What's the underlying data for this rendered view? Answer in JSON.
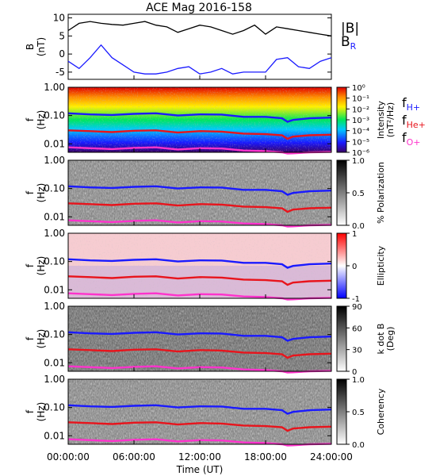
{
  "chart_data": [
    {
      "type": "line",
      "title": "ACE Mag 2016-158",
      "ylabel_lines": [
        "B",
        "(nT)"
      ],
      "ylim": [
        -7,
        11
      ],
      "yticks": [
        {
          "v": 10,
          "label": "10"
        },
        {
          "v": 5,
          "label": "5"
        },
        {
          "v": 0,
          "label": "0"
        },
        {
          "v": -5,
          "label": "-5"
        }
      ],
      "series": [
        {
          "name": "|B|",
          "color": "#000000",
          "x": [
            0,
            1,
            2,
            3,
            4,
            5,
            6,
            7,
            8,
            9,
            10,
            11,
            12,
            13,
            14,
            15,
            16,
            17,
            18,
            19,
            20,
            21,
            22,
            23,
            24
          ],
          "values": [
            6.5,
            8.5,
            9.0,
            8.5,
            8.2,
            8.0,
            8.5,
            9.0,
            8.0,
            7.5,
            6.0,
            7.0,
            8.0,
            7.5,
            6.5,
            5.5,
            6.5,
            8.0,
            5.5,
            7.5,
            7.0,
            6.5,
            6.0,
            5.5,
            5.0
          ]
        },
        {
          "name": "B_R",
          "color": "#1a1aff",
          "x": [
            0,
            1,
            2,
            3,
            4,
            5,
            6,
            7,
            8,
            9,
            10,
            11,
            12,
            13,
            14,
            15,
            16,
            17,
            18,
            19,
            20,
            21,
            22,
            23,
            24
          ],
          "values": [
            -2.0,
            -4.0,
            -1.0,
            2.5,
            -1.0,
            -3.0,
            -5.0,
            -5.5,
            -5.5,
            -5.0,
            -4.0,
            -3.5,
            -5.5,
            -5.0,
            -4.0,
            -5.5,
            -5.0,
            -5.0,
            -5.0,
            -1.5,
            -1.0,
            -3.5,
            -4.0,
            -2.0,
            -1.0
          ]
        }
      ]
    },
    {
      "type": "heatmap",
      "ylabel_lines": [
        "f",
        "(Hz)"
      ],
      "ylim": [
        0.005,
        1.0
      ],
      "yscale": "log",
      "yticks": [
        {
          "v": 1.0,
          "label": "1.00"
        },
        {
          "v": 0.1,
          "label": "0.10"
        },
        {
          "v": 0.01,
          "label": "0.01"
        }
      ],
      "colormap": "rainbow",
      "colorbar_label_lines": [
        "Intensity",
        "(nT²/Hz)"
      ],
      "colorbar_ticks": [
        {
          "label": "10⁰"
        },
        {
          "label": "10⁻¹"
        },
        {
          "label": "10⁻²"
        },
        {
          "label": "10⁻³"
        },
        {
          "label": "10⁻⁴"
        },
        {
          "label": "10⁻⁵"
        },
        {
          "label": "10⁻⁶"
        }
      ],
      "legend": [
        {
          "base": "f",
          "sub": "H+",
          "color": "#1a1aff"
        },
        {
          "base": "f",
          "sub": "He+",
          "color": "#e8141c"
        },
        {
          "base": "f",
          "sub": "O+",
          "color": "#ff33cc"
        }
      ]
    },
    {
      "type": "heatmap",
      "ylabel_lines": [
        "f",
        "(Hz)"
      ],
      "ylim": [
        0.005,
        1.0
      ],
      "yscale": "log",
      "yticks": [
        {
          "v": 1.0,
          "label": "1.00"
        },
        {
          "v": 0.1,
          "label": "0.10"
        },
        {
          "v": 0.01,
          "label": "0.01"
        }
      ],
      "colormap": "gray",
      "colorbar_label_lines": [
        "% Polarization"
      ],
      "colorbar_ticks": [
        {
          "label": "1.0"
        },
        {
          "label": "0.5"
        },
        {
          "label": "0.0"
        }
      ]
    },
    {
      "type": "heatmap",
      "ylabel_lines": [
        "f",
        "(Hz)"
      ],
      "ylim": [
        0.005,
        1.0
      ],
      "yscale": "log",
      "yticks": [
        {
          "v": 1.0,
          "label": "1.00"
        },
        {
          "v": 0.1,
          "label": "0.10"
        },
        {
          "v": 0.01,
          "label": "0.01"
        }
      ],
      "colormap": "blue-white-red",
      "colorbar_label_lines": [
        "Ellipticity"
      ],
      "colorbar_ticks": [
        {
          "label": "1"
        },
        {
          "label": "0"
        },
        {
          "label": "-1"
        }
      ]
    },
    {
      "type": "heatmap",
      "ylabel_lines": [
        "f",
        "(Hz)"
      ],
      "ylim": [
        0.005,
        1.0
      ],
      "yscale": "log",
      "yticks": [
        {
          "v": 1.0,
          "label": "1.00"
        },
        {
          "v": 0.1,
          "label": "0.10"
        },
        {
          "v": 0.01,
          "label": "0.01"
        }
      ],
      "colormap": "gray",
      "colorbar_label_lines": [
        "k dot B",
        "(Deg)"
      ],
      "colorbar_ticks": [
        {
          "label": "90"
        },
        {
          "label": "60"
        },
        {
          "label": "30"
        },
        {
          "label": "0"
        }
      ]
    },
    {
      "type": "heatmap",
      "ylabel_lines": [
        "f",
        "(Hz)"
      ],
      "ylim": [
        0.005,
        1.0
      ],
      "yscale": "log",
      "yticks": [
        {
          "v": 1.0,
          "label": "1.00"
        },
        {
          "v": 0.1,
          "label": "0.10"
        },
        {
          "v": 0.01,
          "label": "0.01"
        }
      ],
      "colormap": "gray",
      "colorbar_label_lines": [
        "Coherency"
      ],
      "colorbar_ticks": [
        {
          "label": "1.0"
        },
        {
          "label": "0.5"
        },
        {
          "label": "0.0"
        }
      ]
    }
  ],
  "overlay_lines": [
    {
      "name": "fH+",
      "color": "#1a1aff",
      "x": [
        0,
        2,
        4,
        6,
        8,
        10,
        12,
        14,
        16,
        18,
        19.5,
        20,
        20.5,
        22,
        24
      ],
      "values": [
        0.12,
        0.11,
        0.105,
        0.115,
        0.12,
        0.1,
        0.11,
        0.108,
        0.09,
        0.09,
        0.08,
        0.06,
        0.07,
        0.08,
        0.085
      ]
    },
    {
      "name": "fHe+",
      "color": "#e8141c",
      "x": [
        0,
        2,
        4,
        6,
        8,
        10,
        12,
        14,
        16,
        18,
        19.5,
        20,
        20.5,
        22,
        24
      ],
      "values": [
        0.03,
        0.028,
        0.026,
        0.029,
        0.03,
        0.025,
        0.028,
        0.027,
        0.023,
        0.022,
        0.02,
        0.015,
        0.018,
        0.02,
        0.021
      ]
    },
    {
      "name": "fO+",
      "color": "#ff33cc",
      "x": [
        0,
        2,
        4,
        6,
        8,
        10,
        12,
        14,
        16,
        18,
        19.5,
        20,
        20.5,
        22,
        24
      ],
      "values": [
        0.0075,
        0.007,
        0.0065,
        0.0072,
        0.0075,
        0.0063,
        0.007,
        0.0068,
        0.0058,
        0.0055,
        0.005,
        0.0045,
        0.0046,
        0.005,
        0.0052
      ]
    }
  ],
  "x_axis": {
    "label": "Time (UT)",
    "xlim": [
      0,
      24
    ],
    "ticks": [
      {
        "v": 0,
        "label": "00:00:00"
      },
      {
        "v": 6,
        "label": "06:00:00"
      },
      {
        "v": 12,
        "label": "12:00:00"
      },
      {
        "v": 18,
        "label": "18:00:00"
      },
      {
        "v": 24,
        "label": "24:00:00"
      }
    ]
  }
}
